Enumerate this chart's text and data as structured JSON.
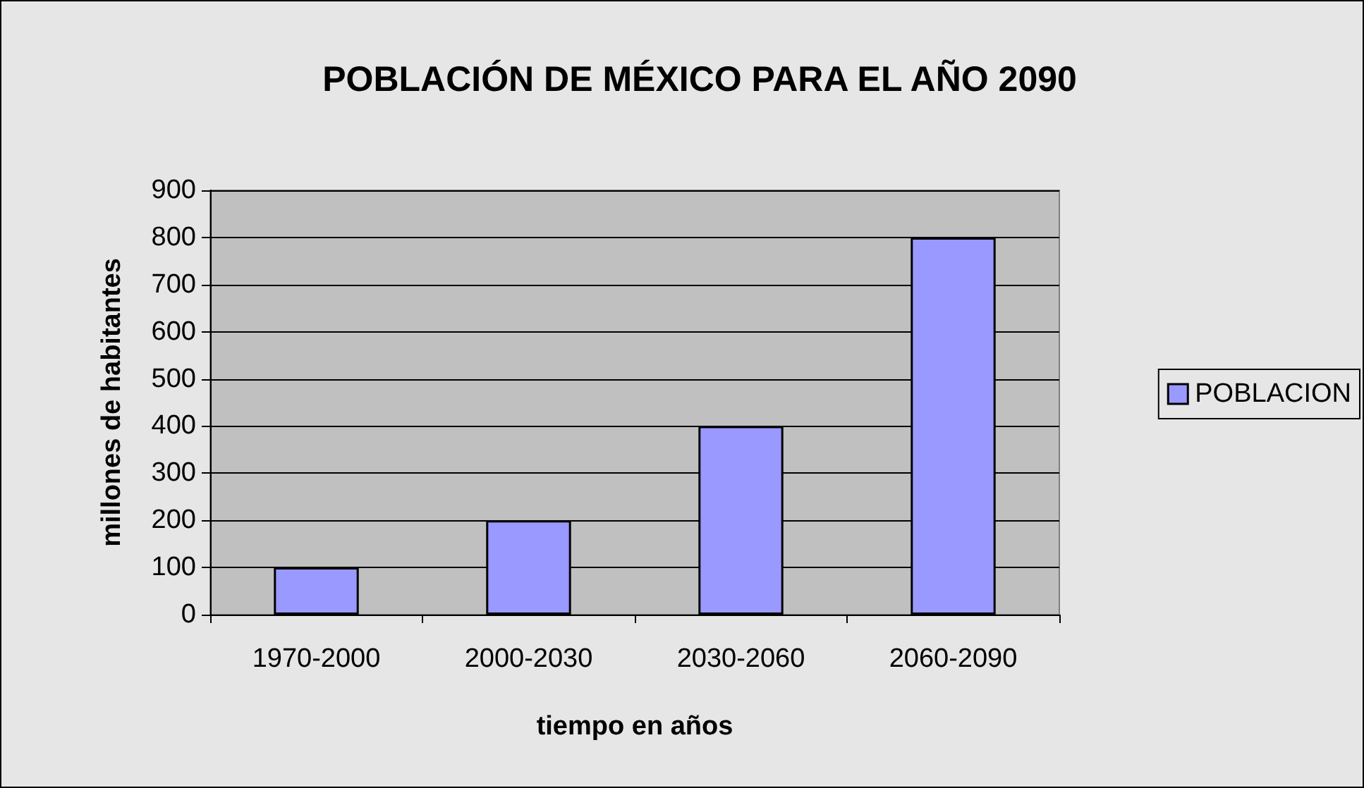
{
  "chart_data": {
    "type": "bar",
    "title": "POBLACIÓN DE MÉXICO PARA EL AÑO 2090",
    "xlabel": "tiempo en años",
    "ylabel": "millones de habitantes",
    "categories": [
      "1970-2000",
      "2000-2030",
      "2030-2060",
      "2060-2090"
    ],
    "series": [
      {
        "name": "POBLACION",
        "color": "#9999ff",
        "values": [
          100,
          200,
          400,
          800
        ]
      }
    ],
    "ylim": [
      0,
      900
    ],
    "yticks": [
      0,
      100,
      200,
      300,
      400,
      500,
      600,
      700,
      800,
      900
    ],
    "grid": "y",
    "legend": "right"
  }
}
